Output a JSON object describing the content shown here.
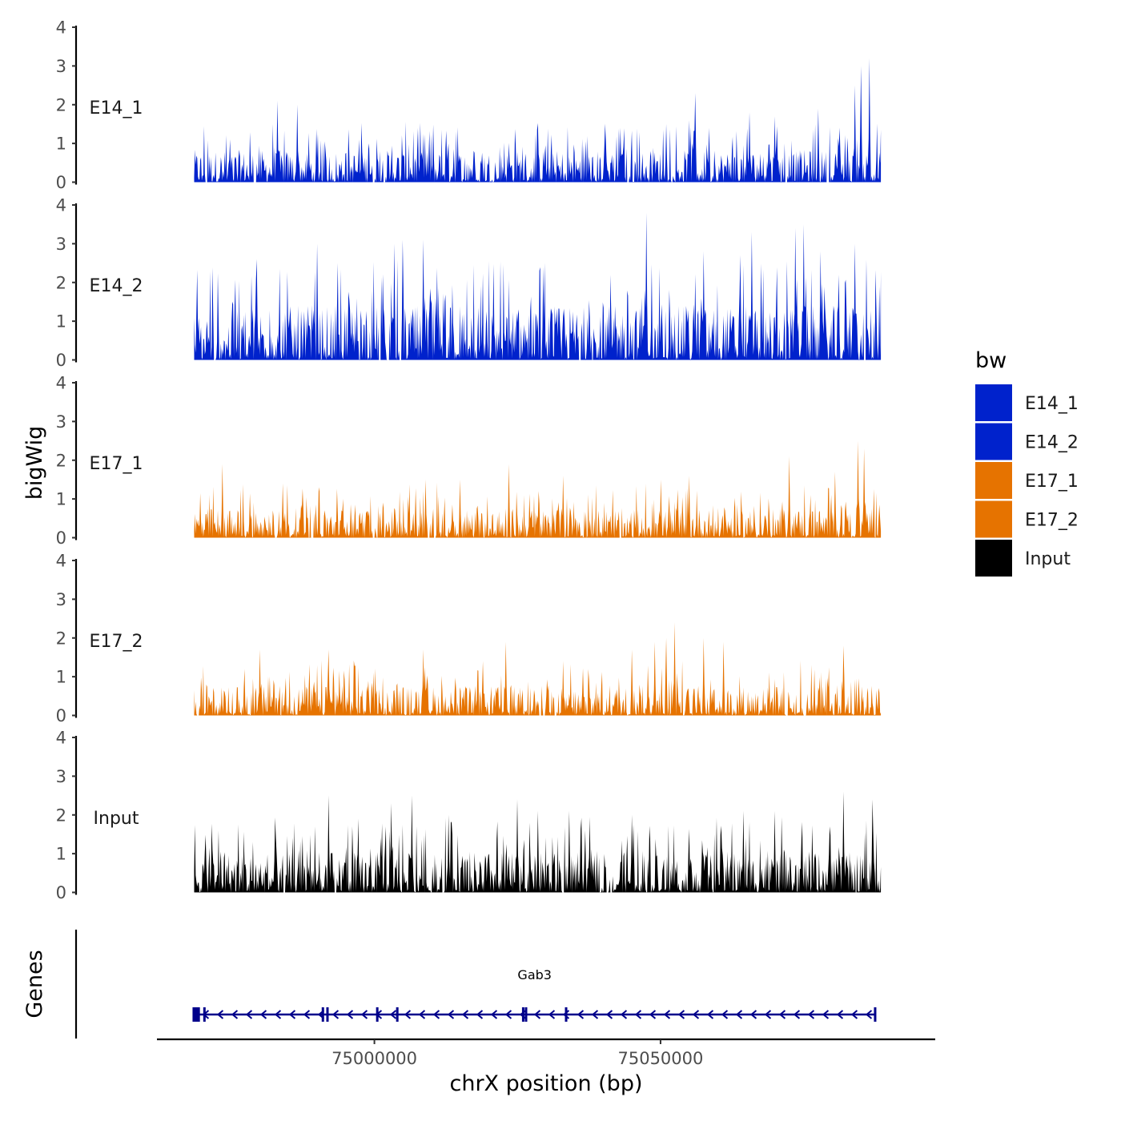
{
  "chart_data": {
    "type": "area",
    "title": "",
    "xlabel": "chrX position (bp)",
    "ylabel": "bigWig",
    "gene_panel_label": "Genes",
    "xlim": [
      74962000,
      75098000
    ],
    "x_data_range": [
      74968500,
      75088500
    ],
    "ylim": [
      0,
      4
    ],
    "y_ticks": [
      "0",
      "1",
      "2",
      "3",
      "4"
    ],
    "x_ticks": [
      {
        "value": 75000000,
        "label": "75000000"
      },
      {
        "value": 75050000,
        "label": "75050000"
      }
    ],
    "legend": {
      "title": "bw",
      "position": "right",
      "entries": [
        {
          "label": "E14_1",
          "color": "#0022cc"
        },
        {
          "label": "E14_2",
          "color": "#0022cc"
        },
        {
          "label": "E17_1",
          "color": "#e67300"
        },
        {
          "label": "E17_2",
          "color": "#e67300"
        },
        {
          "label": "Input",
          "color": "#000000"
        }
      ]
    },
    "series": [
      {
        "name": "E14_1",
        "color": "#0022cc",
        "typical_max": 1.2,
        "peaks": [
          [
            75056000,
            2.3
          ],
          [
            75077500,
            1.9
          ],
          [
            75085000,
            3.0
          ],
          [
            75086500,
            3.2
          ],
          [
            75084000,
            2.5
          ],
          [
            74986500,
            2.0
          ],
          [
            74983000,
            2.1
          ],
          [
            75065500,
            1.8
          ],
          [
            75070000,
            1.7
          ],
          [
            75055000,
            1.6
          ],
          [
            75043000,
            1.4
          ],
          [
            75051000,
            1.5
          ],
          [
            75058500,
            1.4
          ]
        ]
      },
      {
        "name": "E14_2",
        "color": "#0022cc",
        "typical_max": 2.0,
        "peaks": [
          [
            75047500,
            3.8
          ],
          [
            75075000,
            3.5
          ],
          [
            75073500,
            3.4
          ],
          [
            75066000,
            3.3
          ],
          [
            75005000,
            3.1
          ],
          [
            75008500,
            3.1
          ],
          [
            75003500,
            3.0
          ],
          [
            75084000,
            3.0
          ],
          [
            74990000,
            3.0
          ],
          [
            74979500,
            2.6
          ],
          [
            75078000,
            2.8
          ],
          [
            75085500,
            2.9
          ],
          [
            75057500,
            2.8
          ],
          [
            75029500,
            2.4
          ],
          [
            75064000,
            2.7
          ]
        ]
      },
      {
        "name": "E17_1",
        "color": "#e67300",
        "typical_max": 1.1,
        "peaks": [
          [
            75084500,
            2.5
          ],
          [
            75085500,
            2.3
          ],
          [
            75023500,
            1.9
          ],
          [
            75055000,
            1.6
          ],
          [
            75072500,
            2.1
          ],
          [
            75033000,
            1.6
          ],
          [
            75009000,
            1.5
          ],
          [
            75050000,
            1.5
          ],
          [
            74984000,
            1.4
          ],
          [
            75080500,
            1.7
          ],
          [
            75015000,
            1.5
          ],
          [
            74973500,
            1.9
          ]
        ]
      },
      {
        "name": "E17_2",
        "color": "#e67300",
        "typical_max": 1.1,
        "peaks": [
          [
            75052500,
            2.4
          ],
          [
            75051000,
            2.0
          ],
          [
            75049000,
            1.9
          ],
          [
            75023000,
            1.9
          ],
          [
            75057500,
            2.0
          ],
          [
            75061000,
            1.9
          ],
          [
            75082000,
            1.8
          ],
          [
            75045000,
            1.7
          ],
          [
            75008500,
            1.7
          ],
          [
            74992000,
            1.7
          ],
          [
            74980000,
            1.7
          ],
          [
            75019000,
            1.4
          ]
        ]
      },
      {
        "name": "Input",
        "color": "#000000",
        "typical_max": 1.5,
        "peaks": [
          [
            75082000,
            2.6
          ],
          [
            75087000,
            2.4
          ],
          [
            75006500,
            2.5
          ],
          [
            74992000,
            2.5
          ],
          [
            75003000,
            2.3
          ],
          [
            75025000,
            2.4
          ],
          [
            75028500,
            2.1
          ],
          [
            75034000,
            2.1
          ],
          [
            75064500,
            2.1
          ],
          [
            75070000,
            2.1
          ],
          [
            75045000,
            2.0
          ],
          [
            75013000,
            2.0
          ]
        ]
      }
    ],
    "gene": {
      "name": "Gab3",
      "strand": "-",
      "start": 74968500,
      "end": 75087500,
      "exons": [
        74968500,
        74969300,
        74970300,
        74991000,
        74991800,
        75000500,
        75004000,
        75026000,
        75026500,
        75033500,
        75087500
      ]
    }
  }
}
